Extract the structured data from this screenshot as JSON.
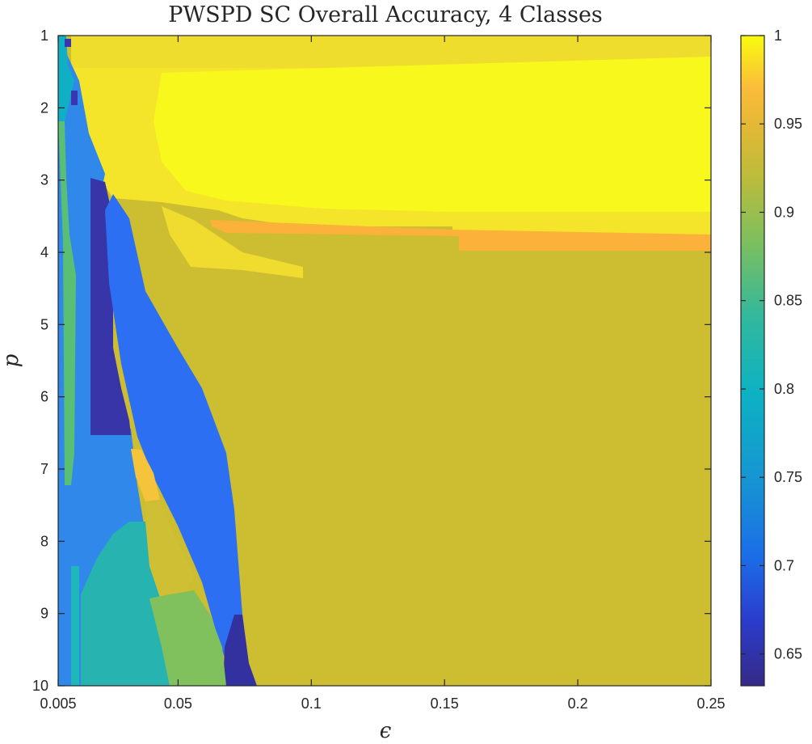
{
  "chart_data": {
    "type": "heatmap",
    "title": "PWSPD SC Overall Accuracy, 4 Classes",
    "xlabel": "ϵ",
    "ylabel": "p",
    "xlim": [
      0.005,
      0.25
    ],
    "ylim": [
      1,
      10
    ],
    "y_direction": "reversed",
    "x_ticks": [
      0.005,
      0.05,
      0.1,
      0.15,
      0.2,
      0.25
    ],
    "x_tick_labels": [
      "0.005",
      "0.05",
      "0.1",
      "0.15",
      "0.2",
      "0.25"
    ],
    "y_ticks": [
      1,
      2,
      3,
      4,
      5,
      6,
      7,
      8,
      9,
      10
    ],
    "y_tick_labels": [
      "1",
      "2",
      "3",
      "4",
      "5",
      "6",
      "7",
      "8",
      "9",
      "10"
    ],
    "colormap": "parula",
    "clim": [
      0.632,
      1.0
    ],
    "colorbar_ticks": [
      0.65,
      0.7,
      0.75,
      0.8,
      0.85,
      0.9,
      0.95,
      1
    ],
    "colorbar_tick_labels": [
      "0.65",
      "0.7",
      "0.75",
      "0.8",
      "0.85",
      "0.9",
      "0.95",
      "1"
    ],
    "regions": [
      {
        "name": "background plateau",
        "value": 0.915,
        "eps_range": [
          0.005,
          0.25
        ],
        "p_range": [
          1,
          10
        ]
      },
      {
        "name": "high-accuracy band",
        "value": 0.985,
        "eps_range": [
          0.015,
          0.25
        ],
        "p_range": [
          1,
          3.4
        ]
      },
      {
        "name": "top strip",
        "value": 0.97,
        "eps_range": [
          0.015,
          0.25
        ],
        "p_range": [
          1,
          1.4
        ]
      },
      {
        "name": "orange band",
        "value": 0.95,
        "eps_range": [
          0.07,
          0.25
        ],
        "p_range": [
          3.65,
          3.95
        ]
      },
      {
        "name": "wedge tail",
        "value": 0.98,
        "eps_range": [
          0.04,
          0.095
        ],
        "p_range": [
          3.4,
          4.35
        ]
      },
      {
        "name": "yellow patch",
        "value": 0.955,
        "eps_range": [
          0.032,
          0.04
        ],
        "p_range": [
          6.7,
          7.5
        ]
      },
      {
        "name": "diagonal blue band",
        "value": 0.715,
        "eps_range": [
          0.02,
          0.07
        ],
        "p_range": [
          3,
          10
        ]
      },
      {
        "name": "dark diagonal band",
        "value": 0.655,
        "eps_range": [
          0.015,
          0.03
        ],
        "p_range": [
          2.9,
          6.5
        ]
      },
      {
        "name": "dark lower band",
        "value": 0.64,
        "eps_range": [
          0.065,
          0.08
        ],
        "p_range": [
          8.9,
          10
        ]
      },
      {
        "name": "left blue column",
        "value": 0.74,
        "eps_range": [
          0.005,
          0.02
        ],
        "p_range": [
          1.2,
          10
        ]
      },
      {
        "name": "green wedge",
        "value": 0.87,
        "eps_range": [
          0.045,
          0.07
        ],
        "p_range": [
          8.3,
          10
        ]
      },
      {
        "name": "teal region",
        "value": 0.82,
        "eps_range": [
          0.02,
          0.045
        ],
        "p_range": [
          7.8,
          10
        ]
      },
      {
        "name": "green left edge",
        "value": 0.87,
        "eps_range": [
          0.005,
          0.008
        ],
        "p_range": [
          2.5,
          5.5
        ]
      }
    ]
  }
}
